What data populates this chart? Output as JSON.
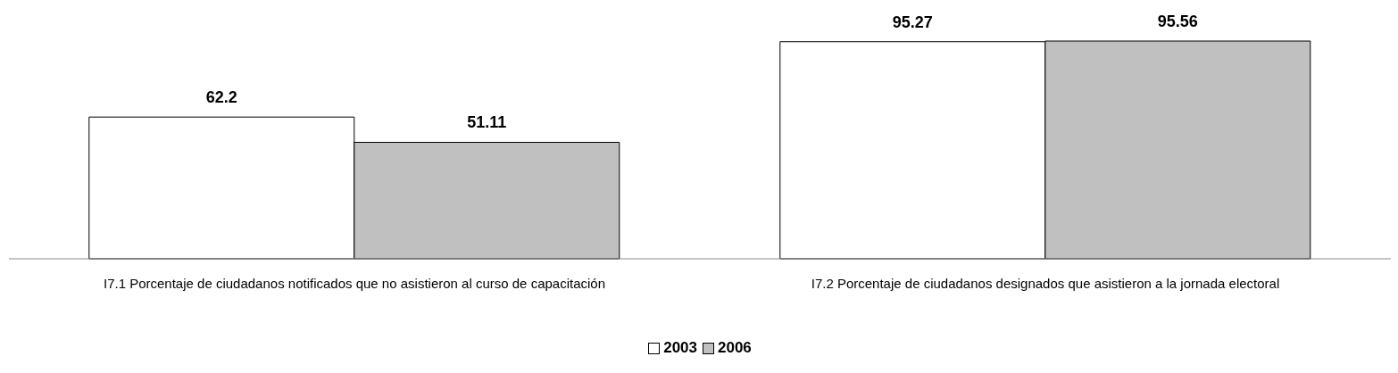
{
  "chart_data": {
    "type": "bar",
    "categories": [
      "I7.1 Porcentaje de ciudadanos notificados que no asistieron al curso de capacitación",
      "I7.2 Porcentaje de ciudadanos designados que asistieron a la jornada electoral"
    ],
    "series": [
      {
        "name": "2003",
        "color": "#ffffff",
        "values": [
          62.2,
          95.27
        ]
      },
      {
        "name": "2006",
        "color": "#c0c0c0",
        "values": [
          51.11,
          95.56
        ]
      }
    ],
    "data_labels": true,
    "legend": "bottom",
    "grid": false
  }
}
